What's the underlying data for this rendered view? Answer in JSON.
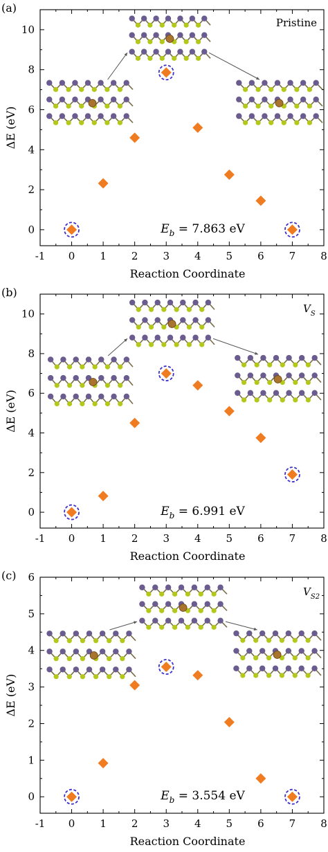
{
  "chart_data": [
    {
      "type": "scatter",
      "panel_label": "(a)",
      "tag": "Pristine",
      "xlabel": "Reaction Coordinate",
      "ylabel": "ΔE (eV)",
      "xlim": [
        -1,
        8
      ],
      "ylim": [
        -0.8,
        11
      ],
      "xticks": [
        -1,
        0,
        1,
        2,
        3,
        4,
        5,
        6,
        7,
        8
      ],
      "yticks": [
        0,
        2,
        4,
        6,
        8,
        10
      ],
      "x": [
        0,
        1,
        2,
        3,
        4,
        5,
        6,
        7
      ],
      "y": [
        0.0,
        2.32,
        4.6,
        7.86,
        5.1,
        2.75,
        1.45,
        0.0
      ],
      "circled_points": [
        0,
        3,
        7
      ],
      "annotation": {
        "sym": "E",
        "sub": "b",
        "value": " = 7.863 eV"
      },
      "marker_color": "#f07c22",
      "circle_color": "#3d2fc9"
    },
    {
      "type": "scatter",
      "panel_label": "(b)",
      "tag": "V",
      "tag_sub": "S",
      "xlabel": "Reaction Coordinate",
      "ylabel": "ΔE (eV)",
      "xlim": [
        -1,
        8
      ],
      "ylim": [
        -0.8,
        11
      ],
      "xticks": [
        -1,
        0,
        1,
        2,
        3,
        4,
        5,
        6,
        7,
        8
      ],
      "yticks": [
        0,
        2,
        4,
        6,
        8,
        10
      ],
      "x": [
        0,
        1,
        2,
        3,
        4,
        5,
        6,
        7
      ],
      "y": [
        0.0,
        0.82,
        4.5,
        7.0,
        6.4,
        5.1,
        3.75,
        1.9
      ],
      "circled_points": [
        0,
        3,
        7
      ],
      "annotation": {
        "sym": "E",
        "sub": "b",
        "value": " = 6.991 eV"
      },
      "marker_color": "#f07c22",
      "circle_color": "#3d2fc9"
    },
    {
      "type": "scatter",
      "panel_label": "(c)",
      "tag": "V",
      "tag_sub": "S2",
      "xlabel": "Reaction Coordinate",
      "ylabel": "ΔE (eV)",
      "xlim": [
        -1,
        8
      ],
      "ylim": [
        -0.45,
        6
      ],
      "xticks": [
        -1,
        0,
        1,
        2,
        3,
        4,
        5,
        6,
        7,
        8
      ],
      "yticks": [
        0,
        1,
        2,
        3,
        4,
        5,
        6
      ],
      "x": [
        0,
        1,
        2,
        3,
        4,
        5,
        6,
        7
      ],
      "y": [
        0.0,
        0.92,
        3.05,
        3.55,
        3.32,
        2.04,
        0.5,
        0.0
      ],
      "circled_points": [
        0,
        3,
        7
      ],
      "annotation": {
        "sym": "E",
        "sub": "b",
        "value": " = 3.554 eV"
      },
      "marker_color": "#f07c22",
      "circle_color": "#3d2fc9"
    }
  ]
}
